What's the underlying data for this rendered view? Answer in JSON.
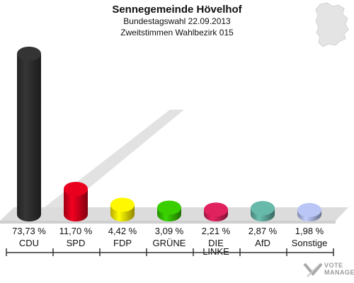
{
  "header": {
    "title": "Sennegemeinde Hövelhof",
    "subtitle": "Bundestagswahl 22.09.2013",
    "subtitle2": "Zweitstimmen Wahlbezirk 015"
  },
  "logo": {
    "line1": "VOTE",
    "line2": "MANAGER"
  },
  "chart_data": {
    "type": "bar",
    "title": "Sennegemeinde Hövelhof",
    "categories": [
      "CDU",
      "SPD",
      "FDP",
      "GRÜNE",
      "DIE LINKE",
      "AfD",
      "Sonstige"
    ],
    "category_lines": [
      [
        "CDU"
      ],
      [
        "SPD"
      ],
      [
        "FDP"
      ],
      [
        "GRÜNE"
      ],
      [
        "DIE",
        "LINKE"
      ],
      [
        "AfD"
      ],
      [
        "Sonstige"
      ]
    ],
    "values": [
      73.73,
      11.7,
      4.42,
      3.09,
      2.21,
      2.87,
      1.98
    ],
    "value_labels": [
      "73,73 %",
      "11,70 %",
      "4,42 %",
      "3,09 %",
      "2,21 %",
      "2,87 %",
      "1,98 %"
    ],
    "colors": [
      "#2f2f2f",
      "#d5001c",
      "#f2e100",
      "#33bb00",
      "#cc1f56",
      "#5ea89a",
      "#a9b4e0"
    ],
    "ylim": [
      0,
      75
    ],
    "grid": false,
    "legend": "none"
  }
}
